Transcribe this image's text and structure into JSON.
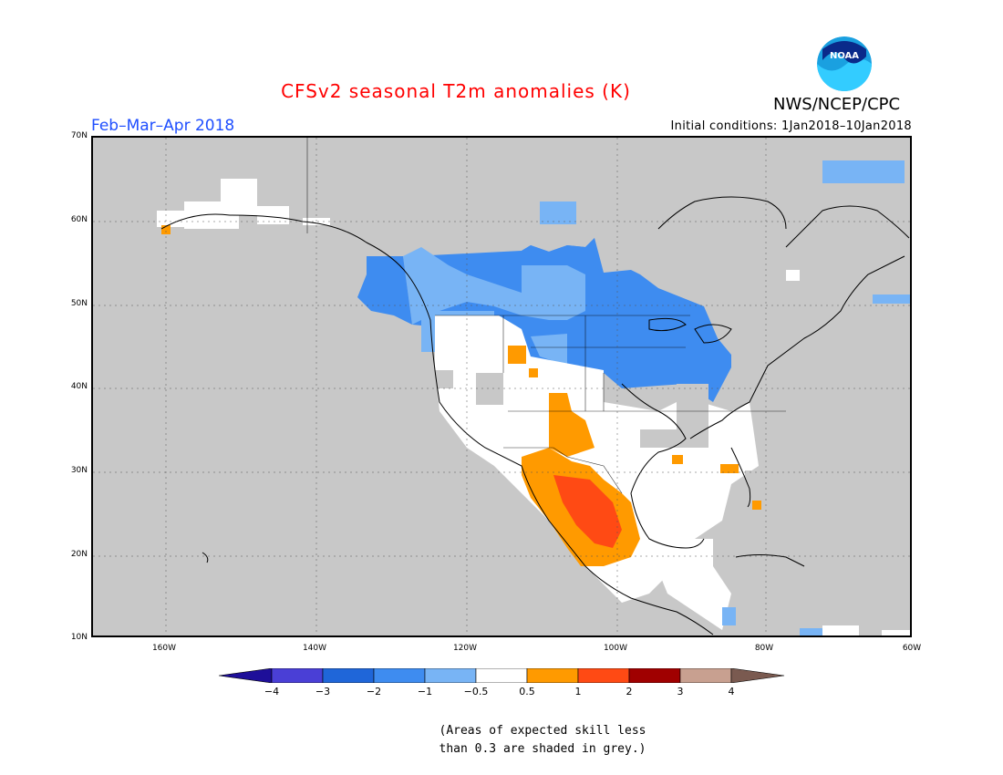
{
  "title": "CFSv2 seasonal T2m anomalies (K)",
  "agency": "NWS/NCEP/CPC",
  "logo_text": "NOAA",
  "period": "Feb–Mar–Apr 2018",
  "initial_conditions": "Initial conditions: 1Jan2018–10Jan2018",
  "lat_ticks": [
    "70N",
    "60N",
    "50N",
    "40N",
    "30N",
    "20N",
    "10N"
  ],
  "lon_ticks": [
    "160W",
    "140W",
    "120W",
    "100W",
    "80W",
    "60W"
  ],
  "colorbar": {
    "labels": [
      "−4",
      "−3",
      "−2",
      "−1",
      "−0.5",
      "0.5",
      "1",
      "2",
      "3",
      "4"
    ],
    "colors": [
      "#1e0f99",
      "#4a3fd6",
      "#1f66d9",
      "#3e8cf0",
      "#78b4f5",
      "#ffffff",
      "#ff9a00",
      "#ff4a14",
      "#a00000",
      "#c8a090",
      "#7a5a50"
    ]
  },
  "note_line1": "(Areas of expected skill less",
  "note_line2": "than 0.3 are shaded in grey.)",
  "colors": {
    "title": "#ff0000",
    "period": "#1f4fff",
    "skill_grey": "#c8c8c8",
    "neutral": "#ffffff",
    "cold_light": "#78b4f5",
    "cold_mid": "#3e8cf0",
    "warm_light": "#ff9a00",
    "warm_mid": "#ff4a14"
  }
}
